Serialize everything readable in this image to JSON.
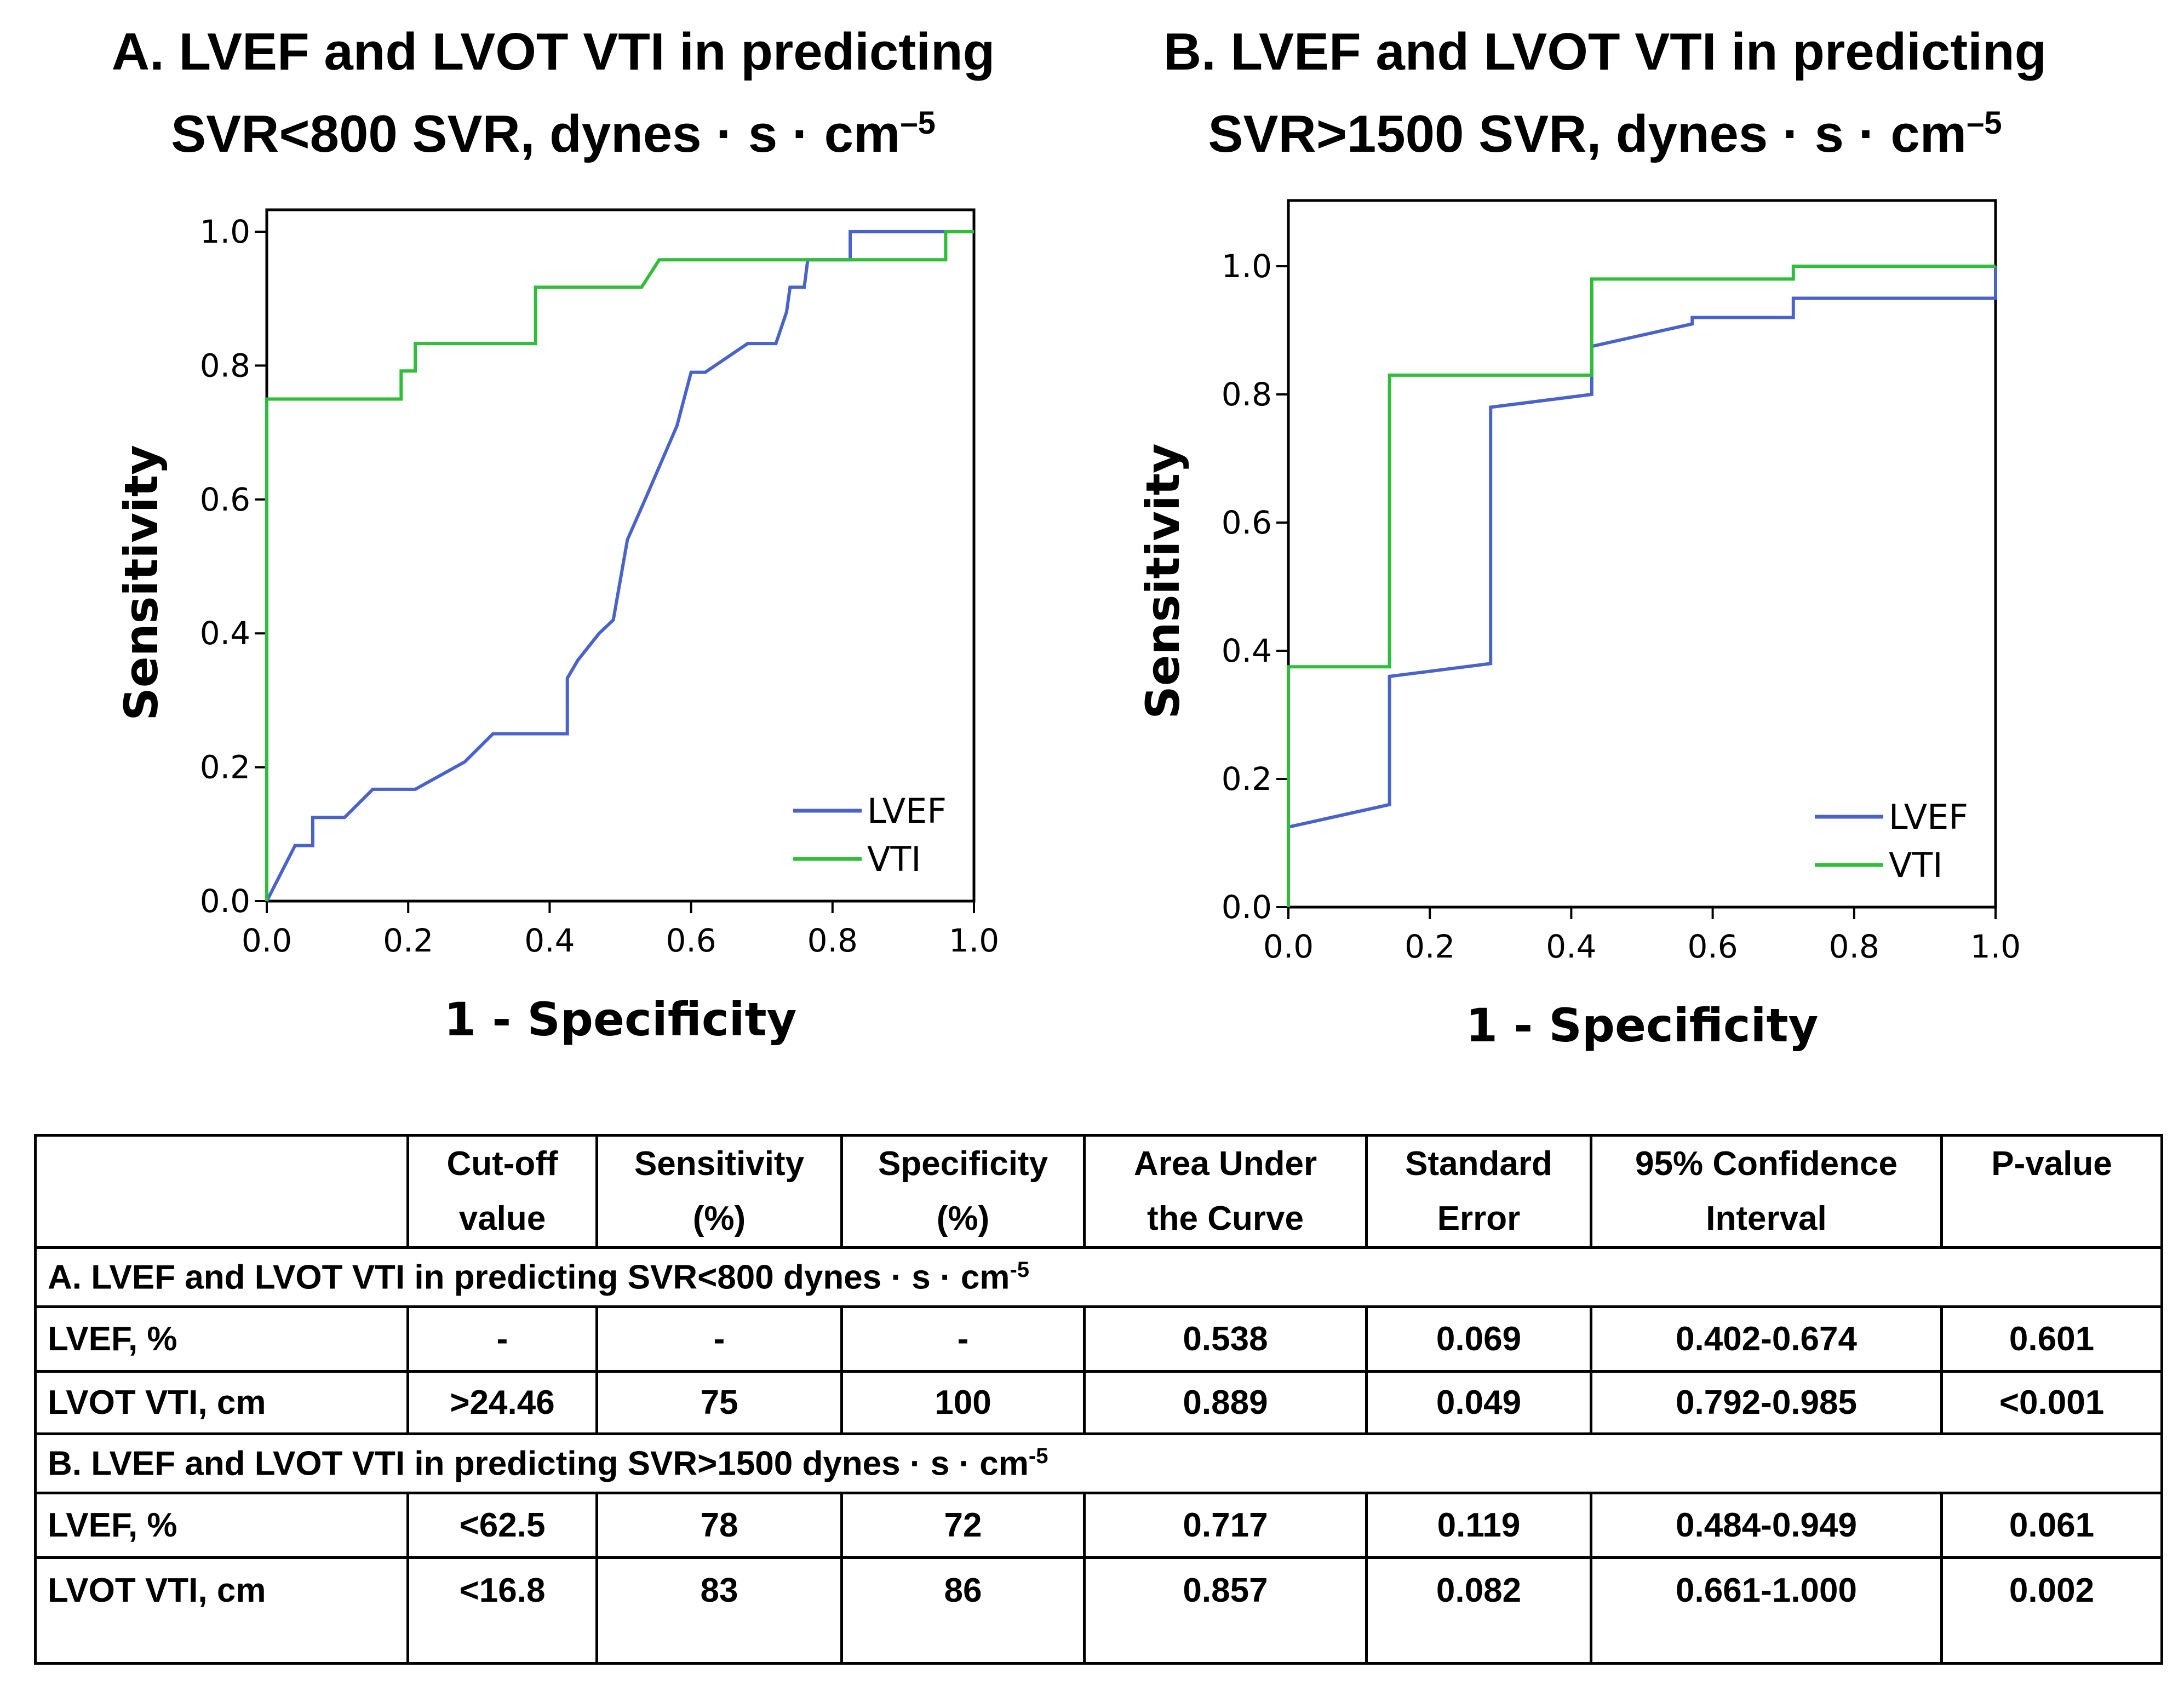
{
  "colors": {
    "lvef": "#4a63c9",
    "vti": "#2fbe3a",
    "axis": "#000000",
    "text": "#000000"
  },
  "chart_data": [
    {
      "type": "line",
      "title": "A.  LVEF and LVOT VTI in predicting SVR<800 SVR, dynes · s · cm",
      "title_line1": "A.  LVEF and LVOT VTI in predicting",
      "title_line2": "SVR<800 SVR, dynes · s · cm",
      "title_sup": "–5",
      "xlabel": "1 - Specificity",
      "ylabel": "Sensitivity",
      "xlim": [
        0,
        1
      ],
      "ylim": [
        0,
        1
      ],
      "xticks": [
        "0.0",
        "0.2",
        "0.4",
        "0.6",
        "0.8",
        "1.0"
      ],
      "yticks": [
        "0.0",
        "0.2",
        "0.4",
        "0.6",
        "0.8",
        "1.0"
      ],
      "legend": [
        "LVEF",
        "VTI"
      ],
      "series": [
        {
          "name": "LVEF",
          "color": "#4a63c9",
          "points": [
            [
              0,
              0
            ],
            [
              0.04,
              0.083
            ],
            [
              0.065,
              0.083
            ],
            [
              0.065,
              0.125
            ],
            [
              0.11,
              0.125
            ],
            [
              0.15,
              0.167
            ],
            [
              0.21,
              0.167
            ],
            [
              0.28,
              0.208
            ],
            [
              0.32,
              0.25
            ],
            [
              0.425,
              0.25
            ],
            [
              0.425,
              0.333
            ],
            [
              0.44,
              0.36
            ],
            [
              0.47,
              0.4
            ],
            [
              0.49,
              0.42
            ],
            [
              0.51,
              0.54
            ],
            [
              0.535,
              0.6
            ],
            [
              0.58,
              0.71
            ],
            [
              0.6,
              0.79
            ],
            [
              0.62,
              0.79
            ],
            [
              0.68,
              0.833
            ],
            [
              0.72,
              0.833
            ],
            [
              0.735,
              0.88
            ],
            [
              0.74,
              0.917
            ],
            [
              0.76,
              0.917
            ],
            [
              0.765,
              0.958
            ],
            [
              0.825,
              0.958
            ],
            [
              0.825,
              1.0
            ],
            [
              1.0,
              1.0
            ]
          ]
        },
        {
          "name": "VTI",
          "color": "#2fbe3a",
          "points": [
            [
              0,
              0
            ],
            [
              0,
              0.75
            ],
            [
              0.19,
              0.75
            ],
            [
              0.19,
              0.792
            ],
            [
              0.21,
              0.792
            ],
            [
              0.21,
              0.833
            ],
            [
              0.38,
              0.833
            ],
            [
              0.38,
              0.917
            ],
            [
              0.53,
              0.917
            ],
            [
              0.555,
              0.958
            ],
            [
              0.96,
              0.958
            ],
            [
              0.96,
              1.0
            ],
            [
              1.0,
              1.0
            ]
          ]
        }
      ]
    },
    {
      "type": "line",
      "title": "B.  LVEF and LVOT VTI in predicting SVR>1500 SVR, dynes · s · cm",
      "title_line1": "B.  LVEF and LVOT VTI in predicting",
      "title_line2": "SVR>1500 SVR, dynes · s · cm",
      "title_sup": "–5",
      "xlabel": "1 - Specificity",
      "ylabel": "Sensitivity",
      "xlim": [
        0,
        1
      ],
      "ylim": [
        0,
        1.1
      ],
      "xticks": [
        "0.0",
        "0.2",
        "0.4",
        "0.6",
        "0.8",
        "1.0"
      ],
      "yticks": [
        "0.0",
        "0.2",
        "0.4",
        "0.6",
        "0.8",
        "1.0"
      ],
      "legend": [
        "LVEF",
        "VTI"
      ],
      "series": [
        {
          "name": "LVEF",
          "color": "#4a63c9",
          "points": [
            [
              0,
              0
            ],
            [
              0,
              0.125
            ],
            [
              0.143,
              0.16
            ],
            [
              0.143,
              0.36
            ],
            [
              0.286,
              0.38
            ],
            [
              0.286,
              0.78
            ],
            [
              0.429,
              0.8
            ],
            [
              0.429,
              0.875
            ],
            [
              0.571,
              0.91
            ],
            [
              0.571,
              0.92
            ],
            [
              0.714,
              0.92
            ],
            [
              0.714,
              0.95
            ],
            [
              1.0,
              0.95
            ],
            [
              1.0,
              1.0
            ]
          ]
        },
        {
          "name": "VTI",
          "color": "#2fbe3a",
          "points": [
            [
              0,
              0
            ],
            [
              0,
              0.375
            ],
            [
              0.143,
              0.375
            ],
            [
              0.143,
              0.83
            ],
            [
              0.429,
              0.83
            ],
            [
              0.429,
              0.98
            ],
            [
              0.714,
              0.98
            ],
            [
              0.714,
              1.0
            ],
            [
              1.0,
              1.0
            ]
          ]
        }
      ]
    }
  ],
  "table": {
    "headers": [
      {
        "line1": "",
        "line2": ""
      },
      {
        "line1": "Cut-off",
        "line2": "value"
      },
      {
        "line1": "Sensitivity",
        "line2": "(%)"
      },
      {
        "line1": "Specificity",
        "line2": "(%)"
      },
      {
        "line1": "Area Under",
        "line2": "the Curve"
      },
      {
        "line1": "Standard",
        "line2": "Error"
      },
      {
        "line1": "95% Confidence",
        "line2": "Interval"
      },
      {
        "line1": "P-value",
        "line2": ""
      }
    ],
    "section_a": "A.  LVEF and LVOT VTI in predicting SVR<800 dynes · s · cm",
    "section_b": "B.  LVEF and LVOT VTI in predicting SVR>1500 dynes · s · cm",
    "section_sup": "-5",
    "rows_a": [
      [
        "LVEF, %",
        "-",
        "-",
        "-",
        "0.538",
        "0.069",
        "0.402-0.674",
        "0.601"
      ],
      [
        "LVOT VTI, cm",
        ">24.46",
        "75",
        "100",
        "0.889",
        "0.049",
        "0.792-0.985",
        "<0.001"
      ]
    ],
    "rows_b": [
      [
        "LVEF, %",
        "<62.5",
        "78",
        "72",
        "0.717",
        "0.119",
        "0.484-0.949",
        "0.061"
      ],
      [
        "LVOT VTI, cm",
        "<16.8",
        "83",
        "86",
        "0.857",
        "0.082",
        "0.661-1.000",
        "0.002"
      ]
    ]
  }
}
